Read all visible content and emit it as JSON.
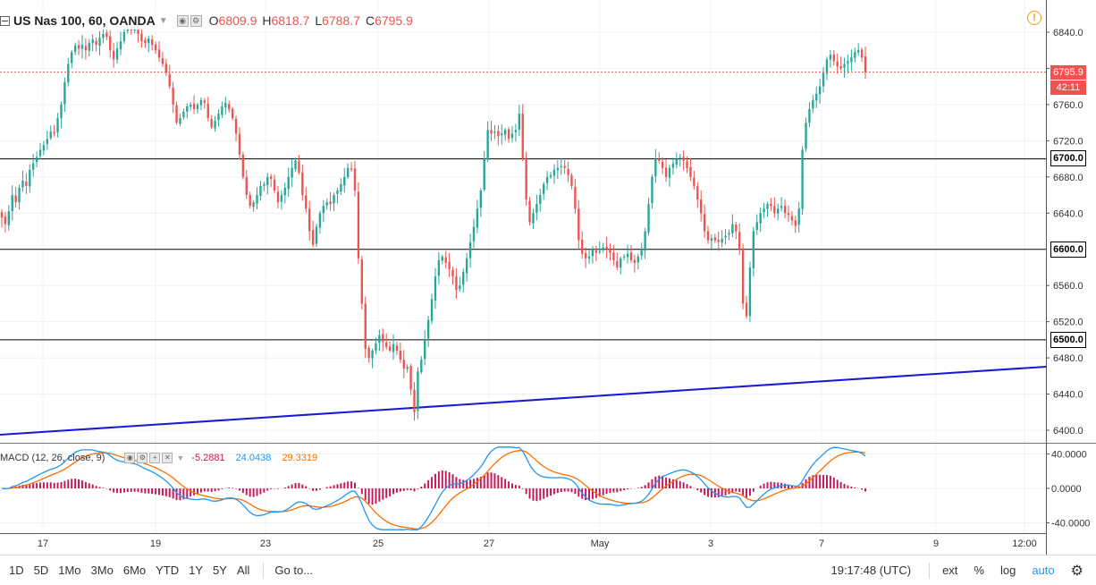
{
  "legend": {
    "symbol": "US Nas 100, 60, OANDA",
    "o_label": "O",
    "o_value": "6809.9",
    "h_label": "H",
    "h_value": "6818.7",
    "l_label": "L",
    "l_value": "6788.7",
    "c_label": "C",
    "c_value": "6795.9"
  },
  "macd_legend": {
    "title": "MACD (12, 26, close, 9)",
    "hist_value": "-5.2881",
    "macd_value": "24.0438",
    "signal_value": "29.3319"
  },
  "price_axis": {
    "ticks": [
      "6840.0",
      "6800.0",
      "6760.0",
      "6720.0",
      "6680.0",
      "6640.0",
      "6560.0",
      "6520.0",
      "6480.0",
      "6440.0",
      "6400.0"
    ],
    "tick_values": [
      6840,
      6800,
      6760,
      6720,
      6680,
      6640,
      6560,
      6520,
      6480,
      6440,
      6400
    ],
    "current_price": "6795.9",
    "countdown": "42:11",
    "levels": [
      {
        "value": 6700,
        "label": "6700.0"
      },
      {
        "value": 6600,
        "label": "6600.0"
      },
      {
        "value": 6500,
        "label": "6500.0"
      }
    ]
  },
  "macd_axis": {
    "ticks": [
      "40.0000",
      "0.0000",
      "-40.0000"
    ],
    "tick_values": [
      40,
      0,
      -40
    ]
  },
  "time_axis": {
    "labels": [
      "17",
      "19",
      "23",
      "25",
      "27",
      "May",
      "3",
      "7",
      "9",
      "12:00"
    ]
  },
  "toolbar": {
    "timeframes": [
      "1D",
      "5D",
      "1Mo",
      "3Mo",
      "6Mo",
      "YTD",
      "1Y",
      "5Y",
      "All"
    ],
    "goto": "Go to...",
    "clock": "19:17:48 (UTC)",
    "ext": "ext",
    "percent": "%",
    "log": "log",
    "auto": "auto"
  },
  "colors": {
    "up": "#26a69a",
    "down": "#ef5350",
    "trendline": "#1a1ad6",
    "macd_line": "#2196f3",
    "signal_line": "#ff6d00",
    "histogram": "#c2185b",
    "accent": "#2196f3"
  },
  "icons": [
    "collapse-icon",
    "eye-icon",
    "settings-icon",
    "plus-icon",
    "close-icon",
    "warning-icon",
    "gear-icon"
  ],
  "chart_data": {
    "type": "candlestick",
    "price_range": [
      6382,
      6862
    ],
    "closes": [
      6635,
      6628,
      6642,
      6660,
      6652,
      6668,
      6676,
      6670,
      6688,
      6695,
      6702,
      6710,
      6715,
      6722,
      6730,
      6728,
      6745,
      6760,
      6785,
      6805,
      6818,
      6825,
      6822,
      6826,
      6820,
      6828,
      6832,
      6826,
      6834,
      6838,
      6835,
      6820,
      6810,
      6822,
      6830,
      6840,
      6845,
      6842,
      6846,
      6838,
      6830,
      6828,
      6833,
      6826,
      6820,
      6812,
      6805,
      6795,
      6780,
      6760,
      6740,
      6745,
      6752,
      6758,
      6760,
      6755,
      6760,
      6765,
      6762,
      6745,
      6735,
      6742,
      6750,
      6758,
      6762,
      6755,
      6745,
      6728,
      6705,
      6680,
      6660,
      6648,
      6652,
      6660,
      6670,
      6672,
      6680,
      6678,
      6665,
      6652,
      6660,
      6668,
      6680,
      6690,
      6698,
      6685,
      6660,
      6645,
      6620,
      6605,
      6625,
      6640,
      6648,
      6652,
      6650,
      6660,
      6665,
      6672,
      6680,
      6690,
      6688,
      6665,
      6590,
      6540,
      6490,
      6480,
      6488,
      6496,
      6505,
      6498,
      6492,
      6488,
      6495,
      6488,
      6478,
      6468,
      6470,
      6445,
      6420,
      6465,
      6478,
      6500,
      6522,
      6545,
      6570,
      6588,
      6592,
      6585,
      6578,
      6570,
      6555,
      6560,
      6575,
      6590,
      6608,
      6625,
      6645,
      6665,
      6700,
      6732,
      6728,
      6730,
      6725,
      6728,
      6732,
      6722,
      6728,
      6732,
      6750,
      6700,
      6655,
      6630,
      6640,
      6650,
      6660,
      6672,
      6680,
      6682,
      6688,
      6690,
      6692,
      6690,
      6682,
      6670,
      6645,
      6610,
      6595,
      6590,
      6592,
      6600,
      6596,
      6598,
      6602,
      6600,
      6596,
      6588,
      6580,
      6590,
      6592,
      6595,
      6588,
      6585,
      6592,
      6600,
      6620,
      6650,
      6680,
      6700,
      6698,
      6690,
      6680,
      6690,
      6695,
      6700,
      6702,
      6698,
      6690,
      6680,
      6670,
      6655,
      6640,
      6620,
      6610,
      6612,
      6610,
      6608,
      6612,
      6615,
      6618,
      6628,
      6620,
      6600,
      6540,
      6526,
      6580,
      6620,
      6630,
      6640,
      6645,
      6650,
      6648,
      6640,
      6645,
      6648,
      6640,
      6638,
      6632,
      6626,
      6645,
      6710,
      6740,
      6755,
      6765,
      6772,
      6780,
      6795,
      6810,
      6815,
      6808,
      6802,
      6800,
      6805,
      6808,
      6812,
      6818,
      6820,
      6812,
      6795.9
    ]
  }
}
